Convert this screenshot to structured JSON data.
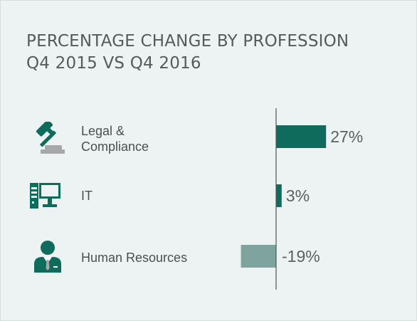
{
  "title_line1": "PERCENTAGE CHANGE BY PROFESSION",
  "title_line2": "Q4 2015 VS Q4 2016",
  "colors": {
    "background": "#edf3f2",
    "positive": "#0f6b5b",
    "negative": "#7fa39e",
    "icon": "#0f6b5b",
    "icon_accent": "#a8a8a8"
  },
  "chart_data": {
    "type": "bar",
    "orientation": "horizontal",
    "categories": [
      "Legal & Compliance",
      "IT",
      "Human Resources"
    ],
    "category_label_lines": [
      [
        "Legal &",
        "Compliance"
      ],
      [
        "IT"
      ],
      [
        "Human Resources"
      ]
    ],
    "values": [
      27,
      3,
      -19
    ],
    "value_labels": [
      "27%",
      "3%",
      "-19%"
    ],
    "icons": [
      "gavel-icon",
      "computer-icon",
      "person-icon"
    ],
    "unit": "%"
  }
}
